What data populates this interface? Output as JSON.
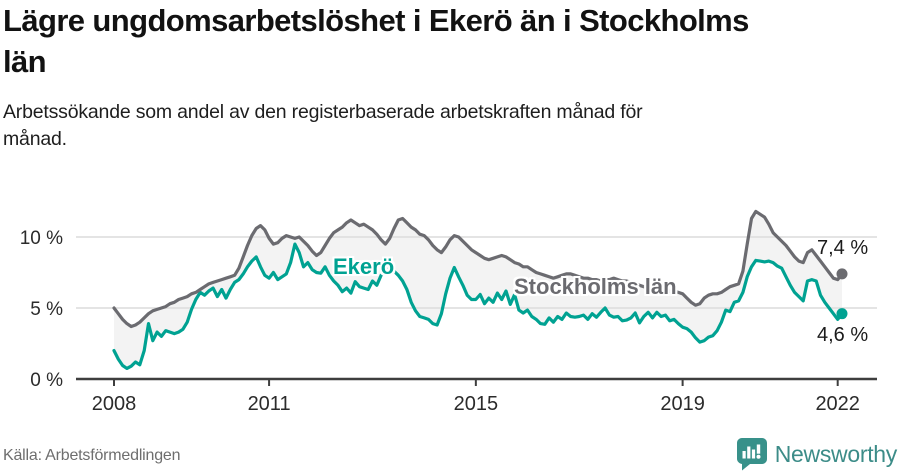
{
  "header": {
    "title": "Lägre ungdomsarbetslöshet i Ekerö än i Stockholms län",
    "subtitle": "Arbetssökande som andel av den registerbaserade arbetskraften månad för månad."
  },
  "footer": {
    "source": "Källa: Arbetsförmedlingen",
    "logo_text": "Newsworthy"
  },
  "colors": {
    "ekero": "#00a292",
    "stockholm": "#6b6b70",
    "fill_between": "#f3f3f3",
    "gridline": "#dcdcdc",
    "axis": "#3e3e3e",
    "tick_label": "#2b2b2b",
    "value_label": "#1b1b1b",
    "logo": "#38918a"
  },
  "chart_data": {
    "type": "line",
    "x_unit": "month",
    "x_start": "2008-01",
    "x_end": "2022-02",
    "grid": true,
    "ylim": [
      0,
      12.3
    ],
    "x_ticks": [
      "2008",
      "2011",
      "2015",
      "2019",
      "2022"
    ],
    "y_ticks": [
      {
        "value": 0,
        "label": "0 %"
      },
      {
        "value": 5,
        "label": "5 %"
      },
      {
        "value": 10,
        "label": "10 %"
      }
    ],
    "series": [
      {
        "name": "Ekerö",
        "color": "#00a292",
        "end_label": "4,6 %",
        "values": [
          2.0,
          1.4,
          0.95,
          0.75,
          0.9,
          1.2,
          1.0,
          2.0,
          3.9,
          2.7,
          3.3,
          3.0,
          3.4,
          3.3,
          3.2,
          3.3,
          3.5,
          4.0,
          4.9,
          5.6,
          6.1,
          5.9,
          6.2,
          6.4,
          5.8,
          6.3,
          5.7,
          6.3,
          6.8,
          7.0,
          7.4,
          7.9,
          8.3,
          8.6,
          7.9,
          7.3,
          7.1,
          7.5,
          7.0,
          7.2,
          7.4,
          8.2,
          9.5,
          8.9,
          7.9,
          8.2,
          7.7,
          7.5,
          7.45,
          7.9,
          7.3,
          6.9,
          6.6,
          6.15,
          6.4,
          6.05,
          6.85,
          6.5,
          6.4,
          6.3,
          6.9,
          6.6,
          7.3,
          7.6,
          7.8,
          7.6,
          7.3,
          6.9,
          6.3,
          5.4,
          4.8,
          4.4,
          4.3,
          4.2,
          3.9,
          3.8,
          4.6,
          6.0,
          7.1,
          7.85,
          7.2,
          6.6,
          5.9,
          5.6,
          5.6,
          5.95,
          5.3,
          5.7,
          5.4,
          6.05,
          5.6,
          6.2,
          5.25,
          5.95,
          4.85,
          4.65,
          4.85,
          4.4,
          4.2,
          3.9,
          3.85,
          4.3,
          4.0,
          4.4,
          4.2,
          4.65,
          4.4,
          4.35,
          4.4,
          4.5,
          4.2,
          4.6,
          4.35,
          4.7,
          5.0,
          4.5,
          4.35,
          4.4,
          4.1,
          4.15,
          4.3,
          4.65,
          3.95,
          4.4,
          4.7,
          4.3,
          4.7,
          4.4,
          4.5,
          4.1,
          4.2,
          3.9,
          3.65,
          3.55,
          3.3,
          2.9,
          2.6,
          2.7,
          2.95,
          3.05,
          3.4,
          4.0,
          4.85,
          4.75,
          5.4,
          5.5,
          6.1,
          7.2,
          7.9,
          8.35,
          8.3,
          8.25,
          8.3,
          8.2,
          7.95,
          7.8,
          7.2,
          6.6,
          6.1,
          5.8,
          5.5,
          6.9,
          7.0,
          6.9,
          5.9,
          5.4,
          5.0,
          4.6,
          4.2,
          4.6
        ]
      },
      {
        "name": "Stockholms län",
        "color": "#6b6b70",
        "end_label": "7,4 %",
        "values": [
          5.0,
          4.6,
          4.2,
          3.9,
          3.7,
          3.8,
          4.0,
          4.3,
          4.6,
          4.8,
          4.9,
          5.0,
          5.1,
          5.3,
          5.4,
          5.6,
          5.7,
          5.8,
          6.0,
          6.1,
          6.3,
          6.5,
          6.7,
          6.8,
          6.9,
          7.0,
          7.1,
          7.2,
          7.3,
          7.8,
          8.6,
          9.4,
          10.1,
          10.6,
          10.8,
          10.5,
          9.9,
          9.5,
          9.6,
          9.9,
          10.1,
          10.0,
          9.9,
          10.0,
          9.7,
          9.4,
          9.0,
          8.7,
          8.9,
          9.4,
          9.9,
          10.3,
          10.5,
          10.7,
          11.0,
          11.2,
          11.0,
          10.8,
          10.9,
          10.7,
          10.5,
          10.2,
          9.8,
          9.5,
          9.9,
          10.6,
          11.2,
          11.3,
          11.0,
          10.7,
          10.5,
          10.2,
          10.1,
          9.8,
          9.4,
          9.1,
          8.9,
          9.3,
          9.8,
          10.1,
          10.0,
          9.7,
          9.4,
          9.1,
          8.9,
          8.7,
          8.5,
          8.4,
          8.5,
          8.6,
          8.7,
          8.6,
          8.4,
          8.2,
          8.1,
          7.9,
          7.9,
          7.7,
          7.5,
          7.4,
          7.3,
          7.2,
          7.1,
          7.2,
          7.3,
          7.4,
          7.4,
          7.3,
          7.2,
          7.1,
          7.1,
          7.0,
          7.0,
          6.9,
          7.0,
          7.0,
          7.1,
          7.0,
          6.9,
          6.9,
          6.8,
          6.7,
          6.6,
          6.5,
          6.4,
          6.4,
          6.5,
          6.4,
          6.3,
          6.2,
          6.2,
          6.1,
          6.0,
          5.7,
          5.4,
          5.2,
          5.3,
          5.7,
          5.9,
          6.0,
          6.0,
          6.1,
          6.3,
          6.5,
          6.6,
          6.7,
          7.6,
          9.5,
          11.3,
          11.8,
          11.6,
          11.4,
          10.9,
          10.3,
          10.0,
          9.7,
          9.4,
          9.0,
          8.6,
          8.3,
          8.2,
          8.9,
          9.1,
          8.7,
          8.3,
          7.9,
          7.5,
          7.1,
          7.0,
          7.4
        ]
      }
    ]
  }
}
